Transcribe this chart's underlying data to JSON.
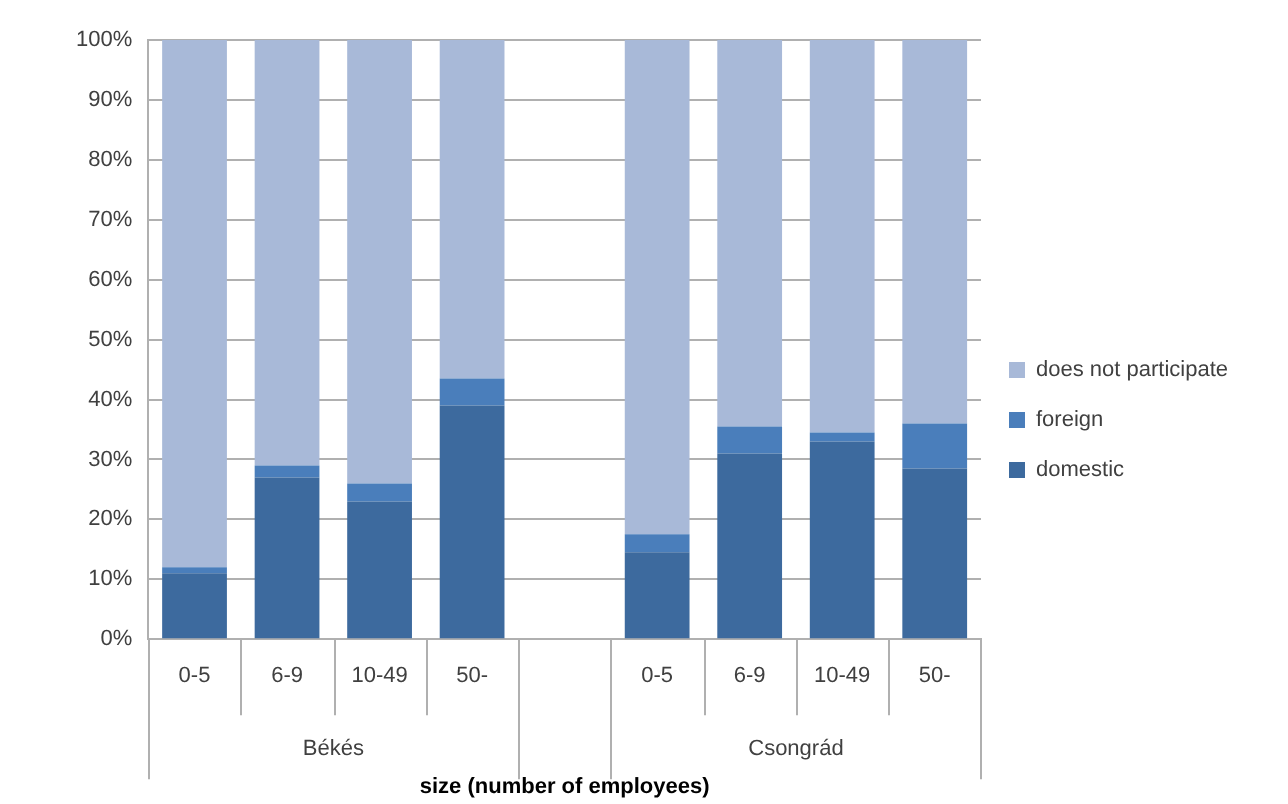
{
  "chart_data": {
    "type": "bar",
    "stacked": true,
    "xlabel": "size (number of employees)",
    "categories": [
      "0-5",
      "6-9",
      "10-49",
      "50-",
      null,
      "0-5",
      "6-9",
      "10-49",
      "50-"
    ],
    "annotations": [
      "Békés",
      "Csongrád"
    ],
    "series": [
      {
        "name": "domestic",
        "color": "#3d6a9e",
        "values": [
          11,
          27,
          23,
          39,
          null,
          14.5,
          31,
          33,
          28.5
        ]
      },
      {
        "name": "foreign",
        "color": "#4a7ebb",
        "values": [
          1,
          2,
          3,
          4.5,
          null,
          3,
          4.5,
          1.5,
          7.5
        ]
      },
      {
        "name": "does not participate",
        "color": "#a8b9d8",
        "values": [
          88,
          71,
          74,
          56.5,
          null,
          82.5,
          64.5,
          65.5,
          64
        ]
      }
    ],
    "ylim": [
      0,
      100
    ],
    "yticks": [
      {
        "value": 0,
        "label": "0%"
      },
      {
        "value": 10,
        "label": "10%"
      },
      {
        "value": 20,
        "label": "20%"
      },
      {
        "value": 30,
        "label": "30%"
      },
      {
        "value": 40,
        "label": "40%"
      },
      {
        "value": 50,
        "label": "50%"
      },
      {
        "value": 60,
        "label": "60%"
      },
      {
        "value": 70,
        "label": "70%"
      },
      {
        "value": 80,
        "label": "80%"
      },
      {
        "value": 90,
        "label": "90%"
      },
      {
        "value": 100,
        "label": "100%"
      }
    ],
    "grid": "y",
    "legend": "right"
  }
}
